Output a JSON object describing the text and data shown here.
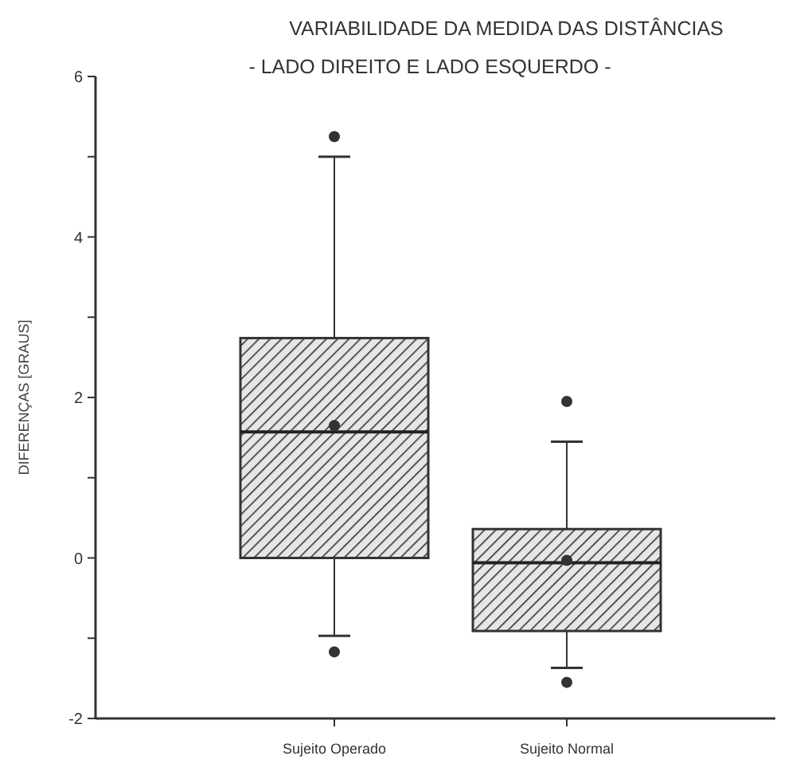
{
  "chart_data": {
    "type": "box",
    "title": "VARIABILIDADE DA MEDIDA DAS DISTÂNCIAS",
    "subtitle": "- LADO DIREITO E LADO ESQUERDO -",
    "ylabel": "DIFERENÇAS [GRAUS]",
    "categories": [
      "Sujeito Operado",
      "Sujeito Normal"
    ],
    "boxes": [
      {
        "low": -0.97,
        "q1": 0,
        "median": 1.57,
        "q3": 2.74,
        "high": 5.0,
        "mean": 1.65,
        "outliers": [
          5.25,
          -1.17
        ]
      },
      {
        "low": -1.37,
        "q1": -0.91,
        "median": -0.06,
        "q3": 0.36,
        "high": 1.45,
        "mean": -0.03,
        "outliers": [
          1.95,
          -1.55
        ]
      }
    ],
    "color": "#333333",
    "ylim": [
      -2,
      6
    ],
    "yticks": [
      -2,
      {
        "value": -1,
        "label": null
      },
      0,
      {
        "value": 1,
        "label": null
      },
      2,
      {
        "value": 3,
        "label": null
      },
      4,
      {
        "value": 5,
        "label": null
      },
      6
    ],
    "grid": false
  }
}
